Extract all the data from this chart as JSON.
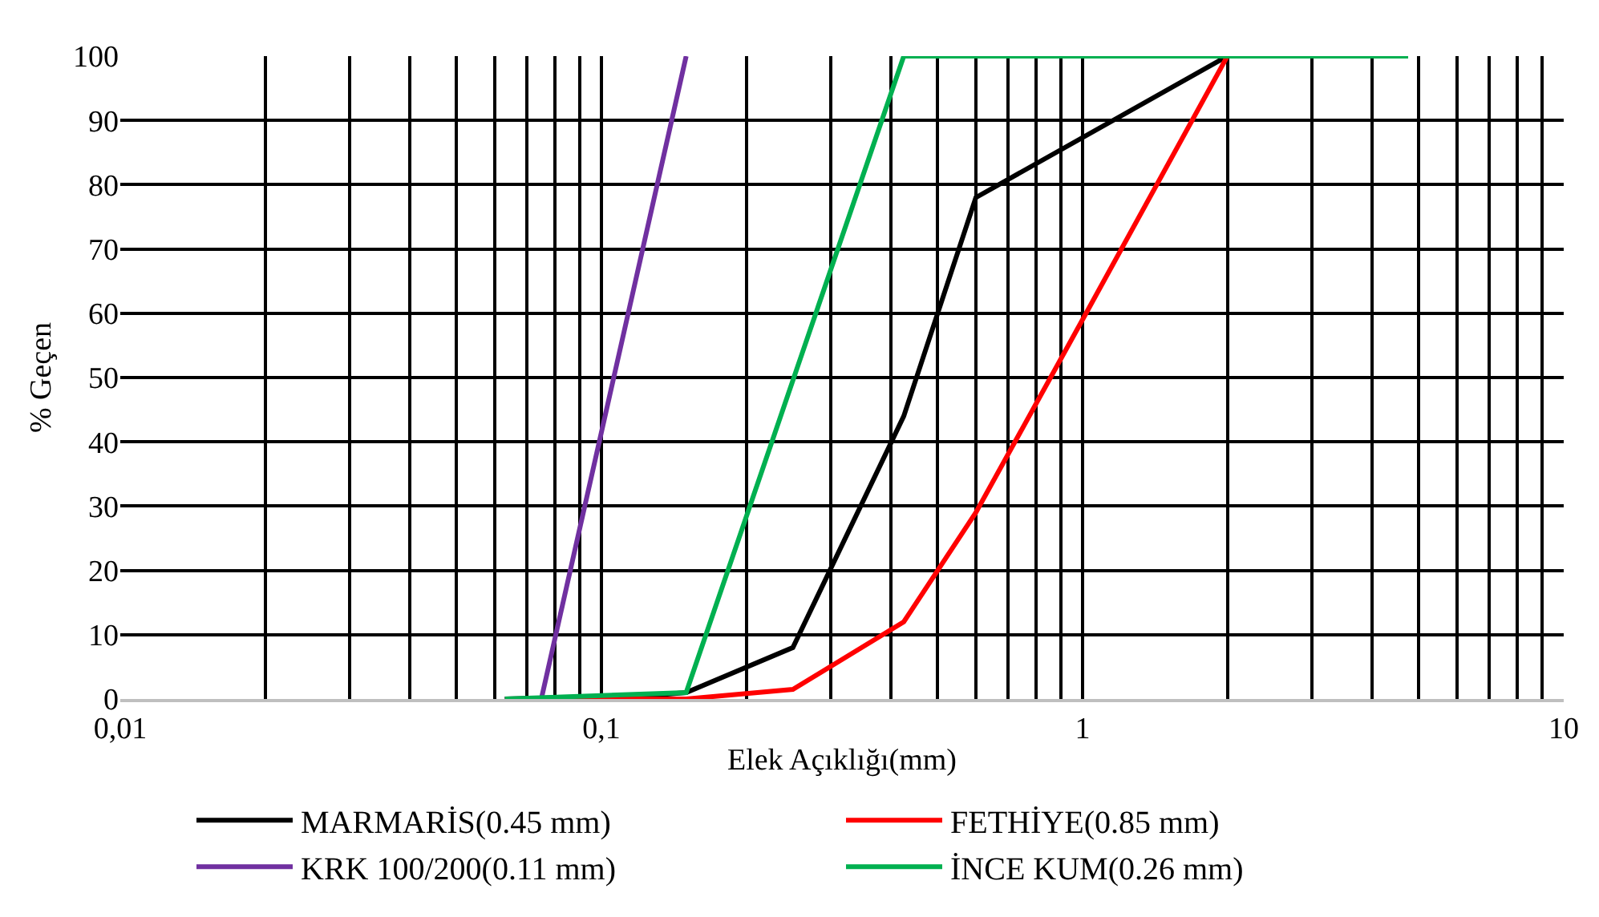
{
  "chart_data": {
    "type": "line",
    "xlabel": "Elek Açıklığı(mm)",
    "ylabel": "% Geçen",
    "log": "x",
    "grid": true,
    "legend": "bottom",
    "marker": "none",
    "line_style": "solid",
    "xlim": [
      0.01,
      10
    ],
    "ylim": [
      0,
      100
    ],
    "xticks": [
      {
        "value": 0.01,
        "label": "0,01"
      },
      {
        "value": 0.02,
        "label": null
      },
      {
        "value": 0.03,
        "label": null
      },
      {
        "value": 0.04,
        "label": null
      },
      {
        "value": 0.05,
        "label": null
      },
      {
        "value": 0.06,
        "label": null
      },
      {
        "value": 0.07,
        "label": null
      },
      {
        "value": 0.08,
        "label": null
      },
      {
        "value": 0.09,
        "label": null
      },
      {
        "value": 0.1,
        "label": "0,1"
      },
      {
        "value": 0.2,
        "label": null
      },
      {
        "value": 0.3,
        "label": null
      },
      {
        "value": 0.4,
        "label": null
      },
      {
        "value": 0.5,
        "label": null
      },
      {
        "value": 0.6,
        "label": null
      },
      {
        "value": 0.7,
        "label": null
      },
      {
        "value": 0.8,
        "label": null
      },
      {
        "value": 0.9,
        "label": null
      },
      1,
      {
        "value": 2,
        "label": null
      },
      {
        "value": 3,
        "label": null
      },
      {
        "value": 4,
        "label": null
      },
      {
        "value": 5,
        "label": null
      },
      {
        "value": 6,
        "label": null
      },
      {
        "value": 7,
        "label": null
      },
      {
        "value": 8,
        "label": null
      },
      {
        "value": 9,
        "label": null
      },
      10
    ],
    "yticks": [
      0,
      10,
      20,
      30,
      40,
      50,
      60,
      70,
      80,
      90,
      100
    ],
    "series": [
      {
        "name": "MARMARİS(0.45 mm)",
        "color": "#000000",
        "x": [
          0.063,
          0.125,
          0.15,
          0.25,
          0.425,
          0.6,
          2
        ],
        "values": [
          0,
          0.5,
          1,
          8,
          44,
          78,
          100
        ]
      },
      {
        "name": "FETHİYE(0.85 mm)",
        "color": "#ff0000",
        "x": [
          0.063,
          0.15,
          0.25,
          0.425,
          0.6,
          1,
          2
        ],
        "values": [
          0,
          0,
          1.5,
          12,
          29,
          59,
          100
        ]
      },
      {
        "name": "KRK 100/200(0.11 mm)",
        "color": "#7030a0",
        "x": [
          0.063,
          0.075,
          0.15
        ],
        "values": [
          0,
          0,
          100
        ]
      },
      {
        "name": "İNCE KUM(0.26 mm)",
        "color": "#00b050",
        "x": [
          0.063,
          0.15,
          0.425,
          4.75
        ],
        "values": [
          0,
          1,
          100,
          100
        ]
      }
    ]
  }
}
